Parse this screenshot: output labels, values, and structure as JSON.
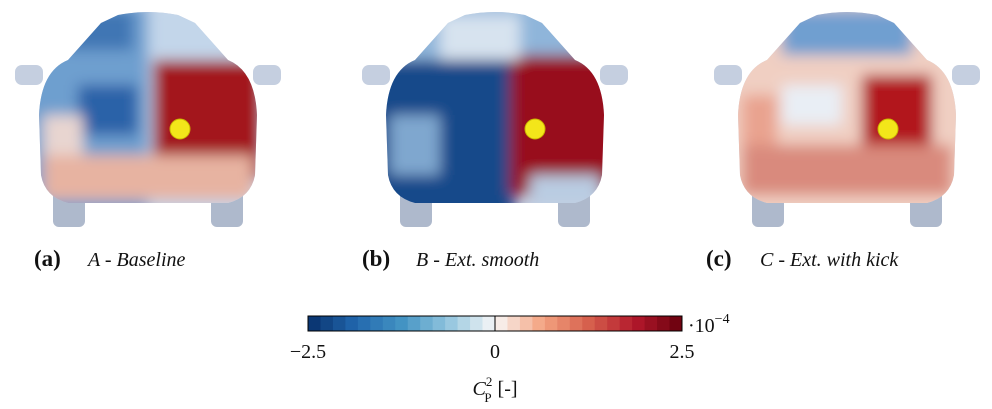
{
  "panels": [
    {
      "label": "(a)",
      "caption": "A - Baseline"
    },
    {
      "label": "(b)",
      "caption": "B - Ext. smooth"
    },
    {
      "label": "(c)",
      "caption": "C - Ext. with kick"
    }
  ],
  "colorbar": {
    "lim": [
      -2.5,
      2.5
    ],
    "ticks": [
      {
        "value": -2.5,
        "label": "−2.5"
      },
      0,
      2.5
    ],
    "multiplier": {
      "base": "·10",
      "exponent": "−4"
    },
    "label": {
      "symbol": "C",
      "subscript": "P",
      "superscript": "2",
      "unit": "[-]"
    }
  }
}
